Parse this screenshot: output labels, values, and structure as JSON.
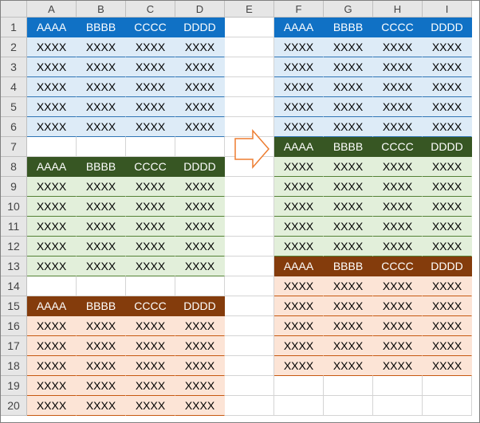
{
  "columns": [
    "A",
    "B",
    "C",
    "D",
    "E",
    "F",
    "G",
    "H",
    "I"
  ],
  "rows": [
    "1",
    "2",
    "3",
    "4",
    "5",
    "6",
    "7",
    "8",
    "9",
    "10",
    "11",
    "12",
    "13",
    "14",
    "15",
    "16",
    "17",
    "18",
    "19",
    "20"
  ],
  "headers": [
    "AAAA",
    "BBBB",
    "CCCC",
    "DDDD"
  ],
  "data_value": "XXXX",
  "colors": {
    "blue_header": "#1071c5",
    "blue_fill": "#ddebf7",
    "green_header": "#375623",
    "green_fill": "#e2efda",
    "orange_header": "#843c0c",
    "orange_fill": "#fce4d6",
    "arrow": "#ed7d31"
  },
  "icons": {
    "arrow": "right-arrow-icon"
  },
  "left_tables": [
    {
      "color": "blue",
      "header_row": 1,
      "data_rows": [
        2,
        3,
        4,
        5,
        6
      ]
    },
    {
      "color": "green",
      "header_row": 8,
      "data_rows": [
        9,
        10,
        11,
        12,
        13
      ]
    },
    {
      "color": "orange",
      "header_row": 15,
      "data_rows": [
        16,
        17,
        18,
        19,
        20
      ]
    }
  ],
  "right_tables": [
    {
      "color": "blue",
      "header_row": 1,
      "data_rows": [
        2,
        3,
        4,
        5,
        6
      ]
    },
    {
      "color": "green",
      "header_row": 7,
      "data_rows": [
        8,
        9,
        10,
        11,
        12
      ]
    },
    {
      "color": "orange",
      "header_row": 13,
      "data_rows": [
        14,
        15,
        16,
        17,
        18
      ]
    }
  ]
}
